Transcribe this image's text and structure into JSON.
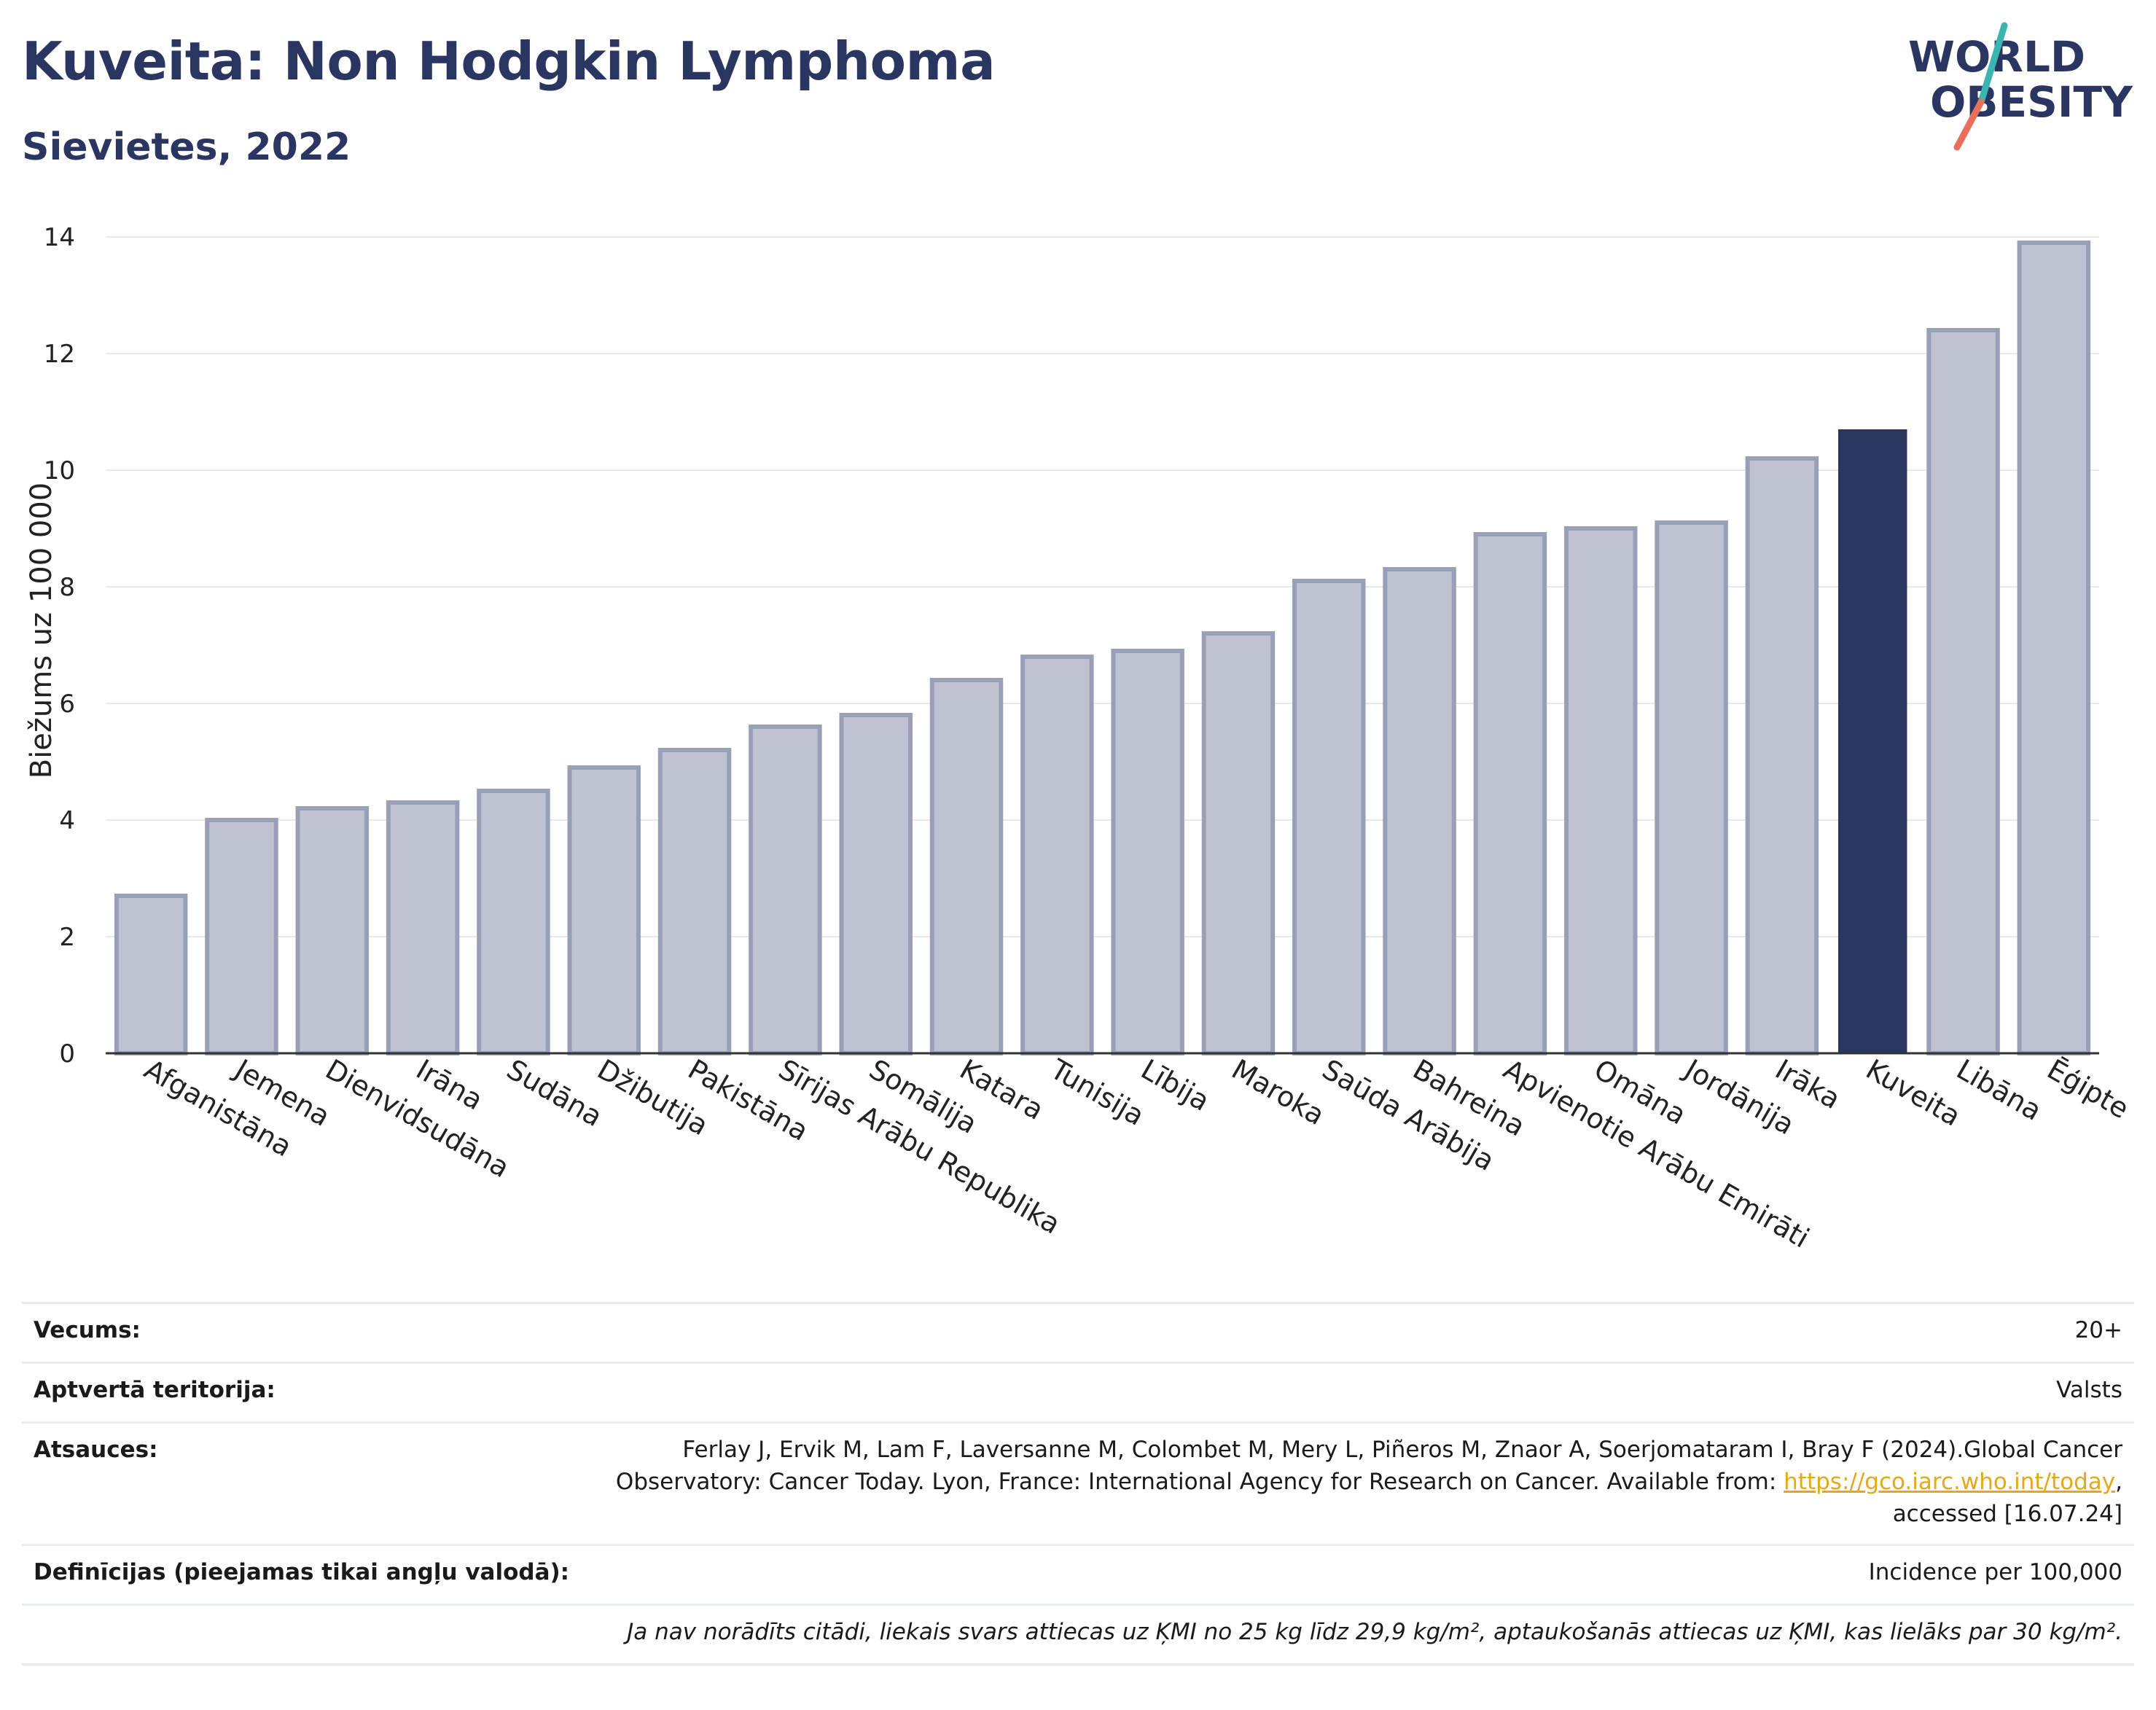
{
  "header": {
    "title": "Kuveita: Non Hodgkin Lymphoma",
    "subtitle": "Sievietes, 2022"
  },
  "logo": {
    "line1": "WORLD",
    "line2": "OBESITY",
    "accent_colors": [
      "#3ab5b0",
      "#e8705a"
    ],
    "text_color": "#2b3561"
  },
  "chart_data": {
    "type": "bar",
    "ylabel": "Biežums uz 100 000",
    "ylim": [
      0,
      14
    ],
    "yticks": [
      0,
      2,
      4,
      6,
      8,
      10,
      12,
      14
    ],
    "grid": true,
    "categories": [
      "Afganistāna",
      "Jemena",
      "Dienvidsudāna",
      "Irāna",
      "Sudāna",
      "Džibutija",
      "Pakistāna",
      "Sīrijas Arābu Republika",
      "Somālija",
      "Katara",
      "Tunisija",
      "Lībija",
      "Maroka",
      "Saūda Arābija",
      "Bahreina",
      "Apvienotie Arābu Emirāti",
      "Omāna",
      "Jordānija",
      "Irāka",
      "Kuveita",
      "Libāna",
      "Ēģipte"
    ],
    "values": [
      2.7,
      4.0,
      4.2,
      4.3,
      4.5,
      4.9,
      5.2,
      5.6,
      5.8,
      6.4,
      6.8,
      6.9,
      7.2,
      8.1,
      8.3,
      8.9,
      9.0,
      9.1,
      10.2,
      10.7,
      12.4,
      13.9
    ],
    "highlight": "Kuveita",
    "colors": {
      "default": "#bfc2d0",
      "default_border": "#9a9fb8",
      "highlight": "#2b3561"
    }
  },
  "meta": {
    "rows": [
      {
        "label": "Vecums:",
        "value": [
          "20+"
        ]
      },
      {
        "label": "Aptvertā teritorija:",
        "value": [
          "Valsts"
        ]
      },
      {
        "label": "Atsauces:",
        "value": [
          "Ferlay J, Ervik M, Lam F, Laversanne M, Colombet M, Mery L, Piñeros M, Znaor A, Soerjomataram I, Bray F (2024).Global Cancer",
          "Observatory: Cancer Today. Lyon, France: International Agency for Research on Cancer. Available from: ",
          "https://gco.iarc.who.int/today",
          ",",
          "accessed [16.07.24]"
        ]
      },
      {
        "label": "Definīcijas (pieejamas tikai angļu valodā):",
        "value": [
          "Incidence per 100,000"
        ]
      },
      {
        "label": "",
        "value": [
          "Ja nav norādīts citādi, liekais svars attiecas uz ĶMI no 25 kg līdz 29,9 kg/m², aptaukošanās attiecas uz ĶMI, kas lielāks par 30 kg/m²."
        ]
      }
    ]
  }
}
